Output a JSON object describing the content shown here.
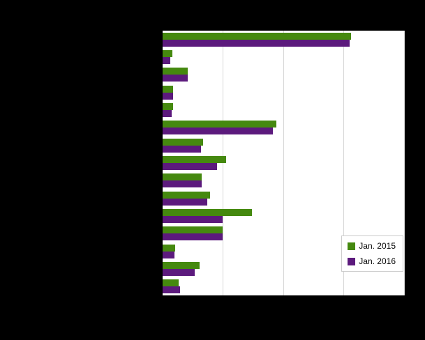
{
  "colors": {
    "page_background": "#000000",
    "plot_background": "#ffffff",
    "gridline": "#d6d6d6",
    "series_2015": "#45890f",
    "series_2016": "#5c1a7d"
  },
  "chart_data": {
    "type": "bar",
    "orientation": "horizontal",
    "title": "",
    "xlabel": "",
    "ylabel": "",
    "xlim": [
      0,
      4
    ],
    "gridlines": "vertical",
    "tick_interval": 1,
    "legend_position": "bottom-right",
    "categories": [
      "",
      "",
      "",
      "",
      "",
      "",
      "",
      "",
      "",
      "",
      "",
      "",
      "",
      "",
      ""
    ],
    "series": [
      {
        "name": "Jan. 2015",
        "color": "#45890f",
        "values": [
          3.11,
          0.16,
          0.41,
          0.17,
          0.17,
          1.88,
          0.67,
          1.05,
          0.64,
          0.78,
          1.47,
          0.99,
          0.21,
          0.61,
          0.26
        ]
      },
      {
        "name": "Jan. 2016",
        "color": "#5c1a7d",
        "values": [
          3.09,
          0.13,
          0.41,
          0.17,
          0.15,
          1.82,
          0.63,
          0.9,
          0.64,
          0.74,
          0.99,
          0.99,
          0.2,
          0.53,
          0.29
        ]
      }
    ]
  },
  "legend": {
    "items": [
      {
        "label": "Jan. 2015",
        "color": "#45890f"
      },
      {
        "label": "Jan. 2016",
        "color": "#5c1a7d"
      }
    ]
  }
}
